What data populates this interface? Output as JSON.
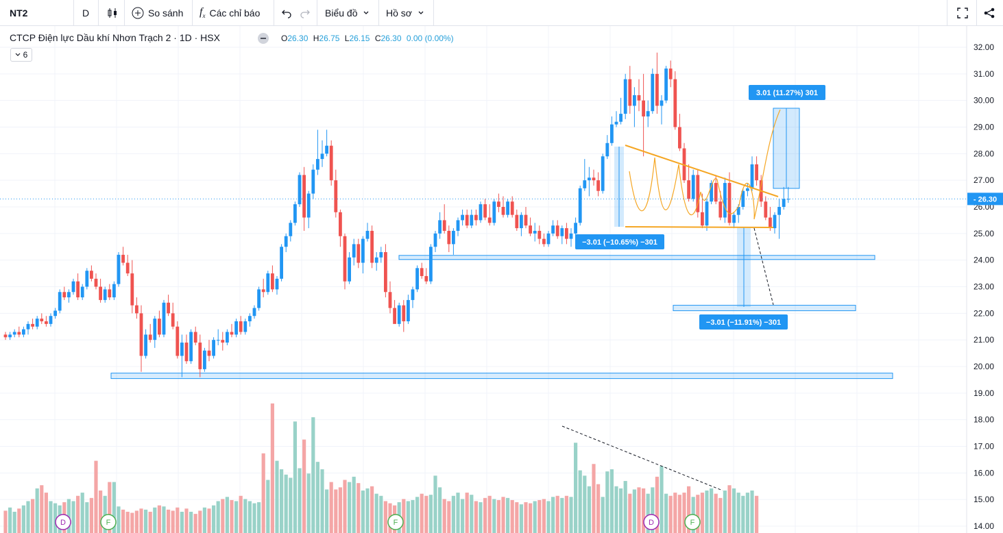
{
  "toolbar": {
    "symbol": "NT2",
    "interval": "D",
    "compare_label": "So sánh",
    "indicators_label": "Các chỉ báo",
    "chart_label": "Biểu đồ",
    "profile_label": "Hồ sơ"
  },
  "legend": {
    "title": "CTCP Điện lực Dầu khí Nhơn Trạch 2 · 1D · HSX",
    "o_key": "O",
    "o_val": "26.30",
    "h_key": "H",
    "h_val": "26.75",
    "l_key": "L",
    "l_val": "26.15",
    "c_key": "C",
    "c_val": "26.30",
    "change": "0.00 (0.00%)",
    "collapsed_count": "6"
  },
  "price_axis": {
    "labels": [
      "32.00",
      "31.00",
      "30.00",
      "29.00",
      "28.00",
      "27.00",
      "26.00",
      "25.00",
      "24.00",
      "23.00",
      "22.00",
      "21.00",
      "20.00",
      "19.00",
      "18.00",
      "17.00",
      "16.00",
      "15.00",
      "14.00"
    ],
    "current_price": "26.30"
  },
  "annotations": {
    "target_up": "3.01 (11.27%) 301",
    "measure_down_1": "−3.01 (−10.65%) −301",
    "measure_down_2": "−3.01 (−11.91%) −301"
  },
  "event_markers": [
    {
      "letter": "D",
      "color": "#9c27b0"
    },
    {
      "letter": "F",
      "color": "#4caf50"
    },
    {
      "letter": "F",
      "color": "#4caf50"
    },
    {
      "letter": "D",
      "color": "#9c27b0"
    },
    {
      "letter": "F",
      "color": "#4caf50"
    }
  ],
  "colors": {
    "up": "#2196f3",
    "down": "#ef5350",
    "vol_up": "#99d2c8",
    "vol_down": "#f4a6a6",
    "trendline": "#f5a623",
    "zone": "#2196f3"
  },
  "chart_data": {
    "type": "candlestick",
    "y_range": [
      14.0,
      32.0
    ],
    "candles": [
      [
        21.2,
        21.3,
        21.0,
        21.1
      ],
      [
        21.1,
        21.3,
        21.0,
        21.2
      ],
      [
        21.2,
        21.4,
        21.1,
        21.3
      ],
      [
        21.3,
        21.5,
        21.1,
        21.2
      ],
      [
        21.2,
        21.5,
        21.1,
        21.4
      ],
      [
        21.4,
        21.7,
        21.2,
        21.6
      ],
      [
        21.6,
        21.8,
        21.4,
        21.5
      ],
      [
        21.5,
        21.9,
        21.4,
        21.8
      ],
      [
        21.8,
        22.0,
        21.6,
        21.7
      ],
      [
        21.7,
        21.9,
        21.5,
        21.6
      ],
      [
        21.6,
        22.0,
        21.5,
        21.9
      ],
      [
        21.9,
        22.2,
        21.8,
        22.1
      ],
      [
        22.1,
        22.9,
        22.0,
        22.8
      ],
      [
        22.8,
        23.0,
        22.5,
        22.6
      ],
      [
        22.6,
        22.9,
        22.4,
        22.8
      ],
      [
        22.8,
        23.3,
        22.7,
        23.2
      ],
      [
        23.2,
        23.5,
        22.5,
        22.6
      ],
      [
        22.6,
        23.1,
        22.5,
        23.0
      ],
      [
        23.0,
        23.7,
        22.9,
        23.6
      ],
      [
        23.6,
        23.8,
        23.2,
        23.3
      ],
      [
        23.3,
        23.5,
        22.9,
        23.0
      ],
      [
        23.0,
        23.3,
        22.4,
        22.5
      ],
      [
        22.5,
        23.0,
        22.4,
        22.9
      ],
      [
        22.9,
        23.1,
        22.5,
        22.6
      ],
      [
        22.6,
        23.2,
        22.5,
        23.1
      ],
      [
        23.1,
        24.3,
        23.0,
        24.2
      ],
      [
        24.2,
        24.5,
        23.8,
        23.9
      ],
      [
        23.9,
        24.2,
        23.4,
        23.5
      ],
      [
        23.5,
        24.0,
        22.0,
        22.3
      ],
      [
        22.3,
        22.6,
        21.8,
        22.0
      ],
      [
        22.0,
        22.3,
        19.8,
        20.4
      ],
      [
        20.4,
        21.4,
        20.3,
        21.2
      ],
      [
        21.2,
        21.6,
        20.9,
        21.0
      ],
      [
        21.0,
        21.9,
        20.7,
        21.8
      ],
      [
        21.8,
        22.1,
        21.1,
        21.2
      ],
      [
        21.2,
        22.5,
        21.1,
        22.4
      ],
      [
        22.4,
        22.7,
        21.9,
        22.0
      ],
      [
        22.0,
        22.4,
        21.4,
        21.5
      ],
      [
        21.5,
        21.7,
        20.3,
        20.4
      ],
      [
        20.4,
        21.2,
        19.6,
        20.9
      ],
      [
        20.9,
        21.2,
        20.1,
        20.2
      ],
      [
        20.2,
        21.4,
        20.1,
        21.3
      ],
      [
        21.3,
        21.5,
        20.8,
        20.9
      ],
      [
        20.9,
        21.2,
        19.6,
        19.9
      ],
      [
        19.9,
        20.7,
        19.8,
        20.6
      ],
      [
        20.6,
        21.0,
        20.2,
        20.4
      ],
      [
        20.4,
        21.1,
        20.3,
        21.0
      ],
      [
        21.0,
        21.4,
        20.8,
        21.0
      ],
      [
        21.0,
        21.3,
        20.6,
        20.9
      ],
      [
        20.9,
        21.4,
        20.8,
        21.3
      ],
      [
        21.3,
        21.6,
        21.1,
        21.2
      ],
      [
        21.2,
        21.8,
        21.1,
        21.7
      ],
      [
        21.7,
        21.9,
        21.2,
        21.3
      ],
      [
        21.3,
        21.8,
        21.2,
        21.7
      ],
      [
        21.7,
        22.0,
        21.5,
        21.9
      ],
      [
        21.9,
        22.3,
        21.8,
        22.2
      ],
      [
        22.2,
        23.0,
        22.1,
        22.9
      ],
      [
        22.9,
        23.3,
        22.6,
        22.8
      ],
      [
        22.8,
        23.6,
        22.7,
        23.5
      ],
      [
        23.5,
        23.8,
        22.8,
        22.9
      ],
      [
        22.9,
        23.4,
        22.7,
        23.3
      ],
      [
        23.3,
        24.6,
        23.2,
        24.5
      ],
      [
        24.5,
        25.0,
        24.3,
        24.9
      ],
      [
        24.9,
        25.5,
        24.7,
        25.4
      ],
      [
        25.4,
        26.2,
        25.3,
        26.1
      ],
      [
        26.1,
        27.3,
        26.0,
        27.2
      ],
      [
        27.2,
        27.5,
        25.1,
        25.6
      ],
      [
        25.6,
        26.6,
        25.2,
        26.5
      ],
      [
        26.5,
        27.6,
        26.3,
        27.4
      ],
      [
        27.4,
        28.9,
        27.2,
        27.8
      ],
      [
        27.8,
        28.5,
        27.5,
        28.0
      ],
      [
        28.0,
        28.9,
        27.9,
        28.3
      ],
      [
        28.3,
        28.5,
        26.8,
        27.0
      ],
      [
        27.0,
        27.4,
        25.6,
        25.8
      ],
      [
        25.8,
        25.9,
        24.5,
        24.9
      ],
      [
        24.9,
        25.0,
        22.9,
        23.2
      ],
      [
        23.2,
        24.3,
        23.1,
        24.1
      ],
      [
        24.1,
        24.8,
        23.8,
        24.6
      ],
      [
        24.6,
        24.8,
        23.7,
        23.9
      ],
      [
        23.9,
        24.9,
        23.5,
        24.8
      ],
      [
        24.8,
        25.4,
        24.7,
        25.1
      ],
      [
        25.1,
        25.3,
        23.7,
        23.9
      ],
      [
        23.9,
        24.3,
        23.6,
        24.1
      ],
      [
        24.1,
        24.5,
        23.9,
        24.3
      ],
      [
        24.3,
        24.6,
        22.6,
        22.8
      ],
      [
        22.8,
        23.2,
        22.0,
        22.2
      ],
      [
        22.2,
        22.5,
        21.7,
        21.6
      ],
      [
        21.6,
        22.4,
        21.5,
        22.3
      ],
      [
        22.3,
        22.5,
        21.3,
        21.7
      ],
      [
        21.7,
        22.7,
        21.6,
        22.5
      ],
      [
        22.5,
        23.0,
        22.2,
        22.9
      ],
      [
        22.9,
        23.8,
        22.8,
        23.7
      ],
      [
        23.7,
        23.9,
        23.3,
        23.4
      ],
      [
        23.4,
        23.7,
        23.1,
        23.2
      ],
      [
        23.2,
        24.6,
        23.1,
        24.5
      ],
      [
        24.5,
        25.1,
        24.3,
        25.0
      ],
      [
        25.0,
        25.8,
        24.8,
        25.5
      ],
      [
        25.5,
        26.1,
        25.0,
        25.1
      ],
      [
        25.1,
        25.3,
        24.3,
        24.6
      ],
      [
        24.6,
        25.2,
        24.2,
        25.1
      ],
      [
        25.1,
        25.6,
        24.9,
        25.5
      ],
      [
        25.5,
        25.9,
        25.3,
        25.7
      ],
      [
        25.7,
        25.9,
        25.2,
        25.3
      ],
      [
        25.3,
        25.9,
        25.2,
        25.7
      ],
      [
        25.7,
        25.9,
        25.3,
        25.5
      ],
      [
        25.5,
        26.2,
        25.4,
        26.1
      ],
      [
        26.1,
        26.3,
        25.5,
        25.6
      ],
      [
        25.6,
        26.1,
        25.3,
        25.4
      ],
      [
        25.4,
        26.3,
        25.3,
        26.2
      ],
      [
        26.2,
        26.5,
        25.8,
        26.0
      ],
      [
        26.0,
        26.4,
        25.6,
        25.7
      ],
      [
        25.7,
        26.3,
        25.6,
        26.2
      ],
      [
        26.2,
        26.4,
        25.6,
        25.7
      ],
      [
        25.7,
        25.9,
        25.1,
        25.2
      ],
      [
        25.2,
        25.8,
        24.9,
        25.7
      ],
      [
        25.7,
        26.0,
        25.2,
        25.3
      ],
      [
        25.3,
        25.6,
        24.9,
        25.0
      ],
      [
        25.0,
        25.4,
        24.7,
        25.1
      ],
      [
        25.1,
        25.3,
        24.6,
        24.8
      ],
      [
        24.8,
        25.0,
        24.5,
        24.6
      ],
      [
        24.6,
        25.1,
        24.5,
        25.0
      ],
      [
        25.0,
        25.5,
        24.9,
        25.3
      ],
      [
        25.3,
        25.5,
        24.8,
        24.9
      ],
      [
        24.9,
        25.3,
        24.6,
        25.2
      ],
      [
        25.2,
        25.4,
        24.6,
        24.8
      ],
      [
        24.8,
        25.2,
        24.5,
        25.0
      ],
      [
        25.0,
        25.6,
        24.9,
        25.4
      ],
      [
        25.4,
        26.8,
        25.3,
        26.7
      ],
      [
        26.7,
        27.8,
        26.6,
        27.0
      ],
      [
        27.0,
        27.5,
        26.4,
        27.1
      ],
      [
        27.1,
        27.4,
        26.8,
        27.0
      ],
      [
        27.0,
        27.3,
        26.4,
        26.6
      ],
      [
        26.6,
        28.0,
        26.5,
        27.9
      ],
      [
        27.9,
        28.7,
        27.8,
        28.4
      ],
      [
        28.4,
        29.4,
        28.3,
        29.1
      ],
      [
        29.1,
        29.6,
        29.0,
        29.2
      ],
      [
        29.2,
        30.1,
        29.1,
        29.5
      ],
      [
        29.5,
        31.0,
        29.3,
        30.8
      ],
      [
        30.8,
        31.3,
        29.5,
        29.8
      ],
      [
        29.8,
        30.5,
        29.0,
        30.2
      ],
      [
        30.2,
        30.8,
        29.6,
        30.0
      ],
      [
        30.0,
        31.0,
        27.9,
        29.4
      ],
      [
        29.4,
        30.0,
        29.0,
        29.6
      ],
      [
        29.6,
        31.2,
        29.5,
        31.0
      ],
      [
        31.0,
        31.8,
        29.5,
        29.8
      ],
      [
        29.8,
        30.2,
        29.1,
        30.0
      ],
      [
        30.0,
        31.3,
        29.9,
        31.2
      ],
      [
        31.2,
        31.5,
        30.5,
        30.8
      ],
      [
        30.8,
        31.1,
        28.9,
        29.0
      ],
      [
        29.0,
        29.5,
        28.1,
        28.2
      ],
      [
        28.2,
        28.4,
        26.9,
        27.0
      ],
      [
        27.0,
        27.6,
        26.2,
        26.3
      ],
      [
        26.3,
        27.4,
        26.2,
        27.2
      ],
      [
        27.2,
        27.4,
        25.6,
        25.8
      ],
      [
        25.8,
        26.5,
        25.2,
        25.3
      ],
      [
        25.3,
        26.3,
        25.1,
        26.2
      ],
      [
        26.2,
        27.0,
        26.1,
        26.9
      ],
      [
        26.9,
        27.2,
        26.1,
        26.2
      ],
      [
        26.2,
        26.6,
        25.5,
        25.6
      ],
      [
        25.6,
        27.1,
        25.4,
        26.9
      ],
      [
        26.9,
        27.3,
        25.3,
        25.4
      ],
      [
        25.4,
        25.8,
        25.2,
        25.7
      ],
      [
        25.7,
        26.1,
        25.4,
        26.0
      ],
      [
        26.0,
        26.7,
        25.9,
        26.6
      ],
      [
        26.6,
        26.9,
        26.4,
        26.7
      ],
      [
        26.7,
        27.9,
        26.6,
        27.6
      ],
      [
        27.6,
        27.9,
        26.8,
        27.0
      ],
      [
        27.0,
        27.2,
        26.0,
        26.2
      ],
      [
        26.2,
        26.4,
        25.5,
        25.6
      ],
      [
        25.6,
        26.0,
        25.1,
        25.2
      ],
      [
        25.2,
        25.8,
        25.0,
        25.7
      ],
      [
        25.7,
        26.3,
        24.8,
        26.0
      ],
      [
        26.0,
        26.75,
        25.9,
        26.3
      ],
      [
        26.3,
        26.75,
        26.15,
        26.3
      ]
    ],
    "volume": [
      2.1,
      2.4,
      2.0,
      2.3,
      2.6,
      3.0,
      3.2,
      4.2,
      4.5,
      3.8,
      3.0,
      2.8,
      2.6,
      2.9,
      3.2,
      3.0,
      3.5,
      3.8,
      2.9,
      3.3,
      6.8,
      4.0,
      3.5,
      4.8,
      4.8,
      2.5,
      2.2,
      2.0,
      1.9,
      2.1,
      2.3,
      2.2,
      2.0,
      2.4,
      2.6,
      2.5,
      2.2,
      2.1,
      2.4,
      2.0,
      2.3,
      2.0,
      1.8,
      2.1,
      2.4,
      2.3,
      2.6,
      3.0,
      3.2,
      3.4,
      3.1,
      3.0,
      3.5,
      3.2,
      3.0,
      2.8,
      2.9,
      7.5,
      5.0,
      12.2,
      6.8,
      6.0,
      5.5,
      5.2,
      10.5,
      6.1,
      8.8,
      5.6,
      10.9,
      6.7,
      6.0,
      4.1,
      4.8,
      4.1,
      4.3,
      5.0,
      4.8,
      5.3,
      4.7,
      4.0,
      4.2,
      4.4,
      3.7,
      3.5,
      3.0,
      2.8,
      2.6,
      2.9,
      3.2,
      3.0,
      3.1,
      3.4,
      3.7,
      3.5,
      3.6,
      5.4,
      4.3,
      3.2,
      3.0,
      3.5,
      3.8,
      3.2,
      3.8,
      3.6,
      3.0,
      2.9,
      3.3,
      3.5,
      3.2,
      3.1,
      3.4,
      3.3,
      3.1,
      2.9,
      2.7,
      2.9,
      2.8,
      3.0,
      3.1,
      3.2,
      3.0,
      3.4,
      3.5,
      3.3,
      3.5,
      3.4,
      8.5,
      5.9,
      5.4,
      4.4,
      6.5,
      4.6,
      3.4,
      5.8,
      6.0,
      4.4,
      4.2,
      4.9,
      3.7,
      4.1,
      4.3,
      4.2,
      3.7,
      4.3,
      5.3,
      6.3,
      3.7,
      3.5,
      3.8,
      3.6,
      3.8,
      4.4,
      3.4,
      3.6,
      3.8,
      4.0,
      4.2,
      3.7,
      3.3,
      4.0,
      4.5,
      4.2,
      3.8,
      3.5,
      3.8,
      4.0,
      3.5
    ],
    "zones": [
      {
        "y": 19.65,
        "label": "support"
      },
      {
        "y": 24.1,
        "label": "support"
      },
      {
        "y": 22.2,
        "label": "target"
      }
    ]
  }
}
